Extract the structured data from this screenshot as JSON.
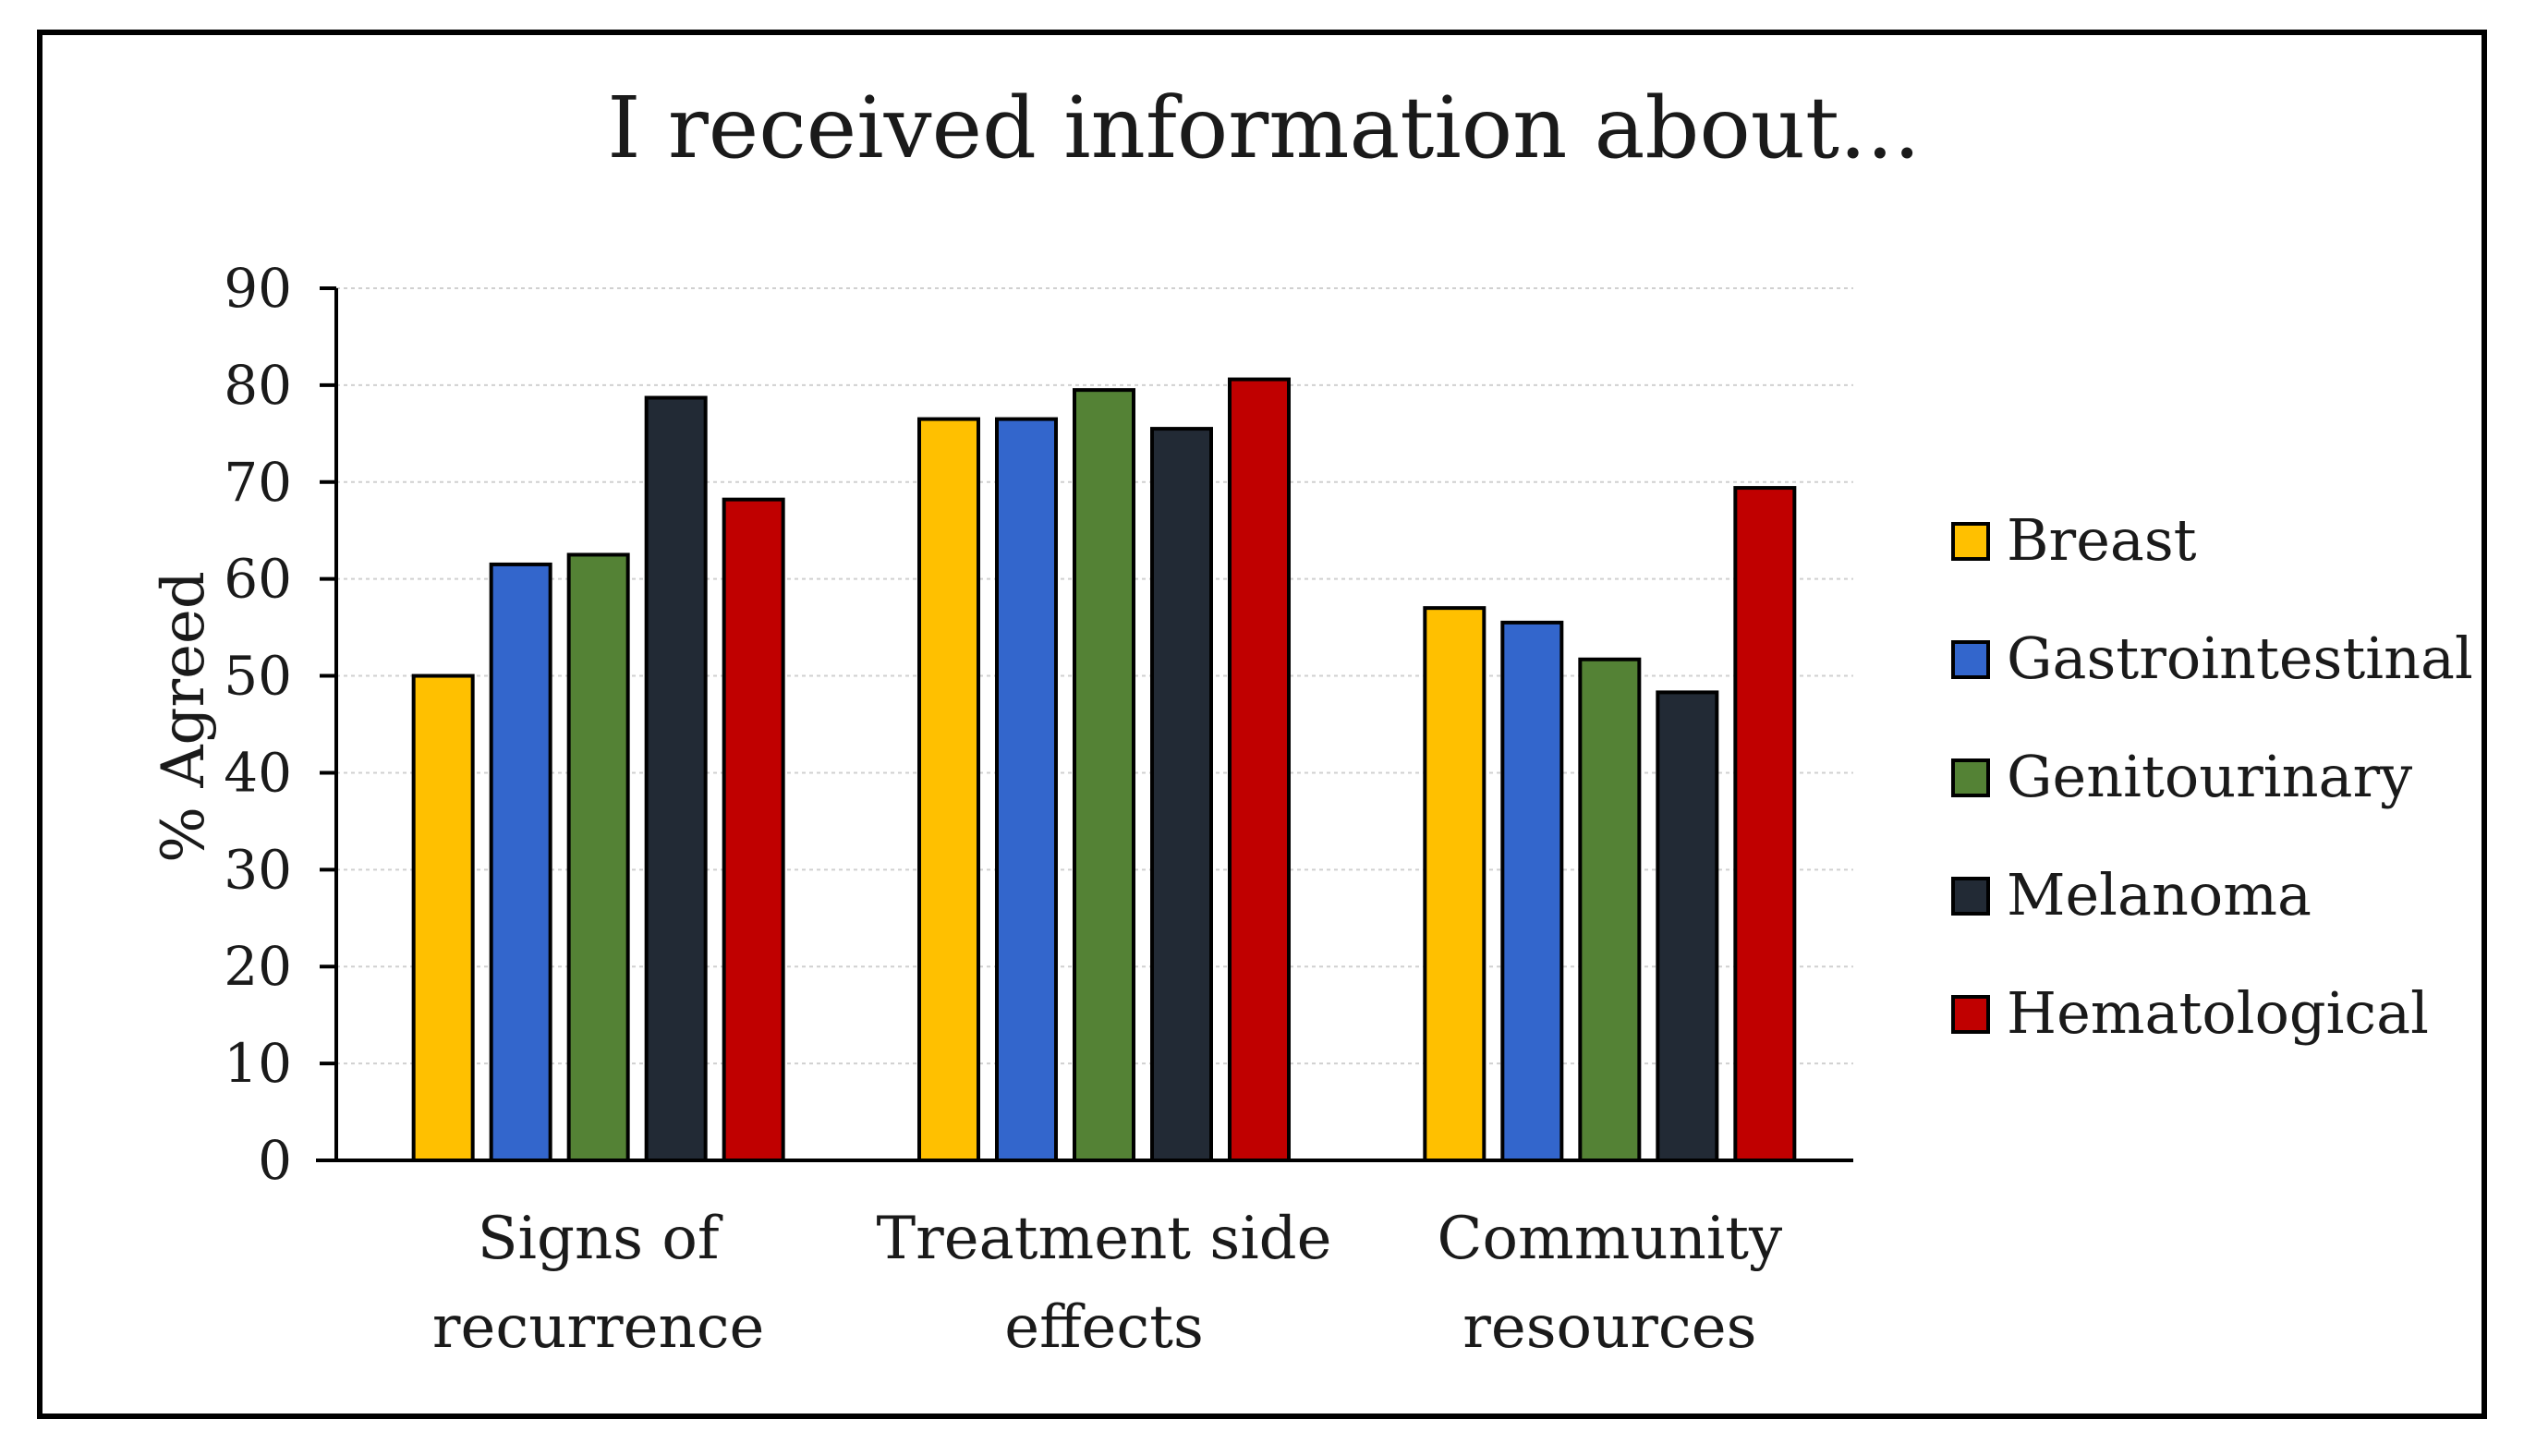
{
  "chart_data": {
    "type": "bar",
    "title": "I received information about...",
    "xlabel": "",
    "ylabel": "% Agreed",
    "ylim": [
      0,
      90
    ],
    "yticks": [
      0,
      10,
      20,
      30,
      40,
      50,
      60,
      70,
      80,
      90
    ],
    "grid": true,
    "legend_position": "right",
    "categories": [
      [
        "Signs of",
        "recurrence"
      ],
      [
        "Treatment side",
        "effects"
      ],
      [
        "Community",
        "resources"
      ]
    ],
    "series": [
      {
        "name": "Breast",
        "color": "#FFC000",
        "values": [
          50,
          76.5,
          57
        ]
      },
      {
        "name": "Gastrointestinal",
        "color": "#3366CC",
        "values": [
          61.5,
          76.5,
          55.5
        ]
      },
      {
        "name": "Genitourinary",
        "color": "#548235",
        "values": [
          62.5,
          79.5,
          51.7
        ]
      },
      {
        "name": "Melanoma",
        "color": "#222A35",
        "values": [
          78.7,
          75.5,
          48.3
        ]
      },
      {
        "name": "Hematological",
        "color": "#C00000",
        "values": [
          68.2,
          80.6,
          69.4
        ]
      }
    ]
  }
}
